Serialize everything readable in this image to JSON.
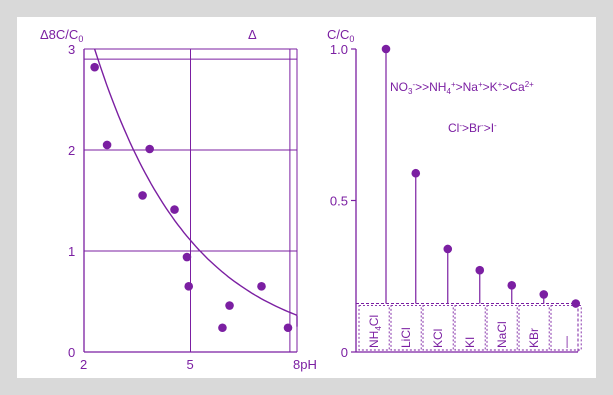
{
  "colors": {
    "accent": "#7b1fa2",
    "frame": "#d9d9d9",
    "background": "#ffffff"
  },
  "chart_data": [
    {
      "type": "scatter",
      "title": "",
      "ylabel": "Δ8C/C0",
      "ylabel_parts": [
        "Δ8C/C",
        "0"
      ],
      "extra_label": "Δ",
      "x_unit": "pH",
      "xlim": [
        2,
        8
      ],
      "ylim": [
        0,
        3
      ],
      "xticks": [
        2,
        5,
        8
      ],
      "xtick_labels": [
        "2",
        "5",
        "8pH"
      ],
      "yticks": [
        0,
        1,
        2,
        3
      ],
      "ytick_labels": [
        "0",
        "1",
        "2",
        "3"
      ],
      "grid": true,
      "hline_extra": 2.9,
      "vline_extra": 7.8,
      "points": [
        {
          "x": 2.3,
          "y": 2.82
        },
        {
          "x": 2.65,
          "y": 2.05
        },
        {
          "x": 3.65,
          "y": 1.55
        },
        {
          "x": 3.85,
          "y": 2.01
        },
        {
          "x": 4.55,
          "y": 1.41
        },
        {
          "x": 4.9,
          "y": 0.94
        },
        {
          "x": 4.95,
          "y": 0.65
        },
        {
          "x": 5.9,
          "y": 0.24
        },
        {
          "x": 6.1,
          "y": 0.46
        },
        {
          "x": 7.0,
          "y": 0.65
        },
        {
          "x": 8.6,
          "y": 0.24
        }
      ],
      "fit_curve": {
        "x0": 2.3,
        "x1": 9.0,
        "a": 3.0,
        "b": 0.37
      }
    },
    {
      "type": "bar",
      "title": "",
      "ylabel": "C/C0",
      "ylabel_parts": [
        "C/C",
        "0"
      ],
      "ylim": [
        0,
        1.0
      ],
      "yticks": [
        0,
        0.5,
        1.0
      ],
      "ytick_labels": [
        "0",
        "0.5",
        "1.0"
      ],
      "threshold": 0.16,
      "categories": [
        {
          "label": [
            "NH",
            "4",
            "Cl"
          ],
          "value": null
        },
        {
          "label": [
            "LiCl"
          ],
          "value": 0.59
        },
        {
          "label": [
            "KCl"
          ],
          "value": 0.34
        },
        {
          "label": [
            "KI"
          ],
          "value": 0.27
        },
        {
          "label": [
            "NaCl"
          ],
          "value": 0.22
        },
        {
          "label": [
            "KBr"
          ],
          "value": 0.19
        },
        {
          "label": [
            "—"
          ],
          "value": 0.16
        }
      ],
      "peak_value": 1.0,
      "annotation_1": "NO3->>NH4+>Na+>K+>Ca2+",
      "annotation_2": "Cl->Br->I-"
    }
  ]
}
